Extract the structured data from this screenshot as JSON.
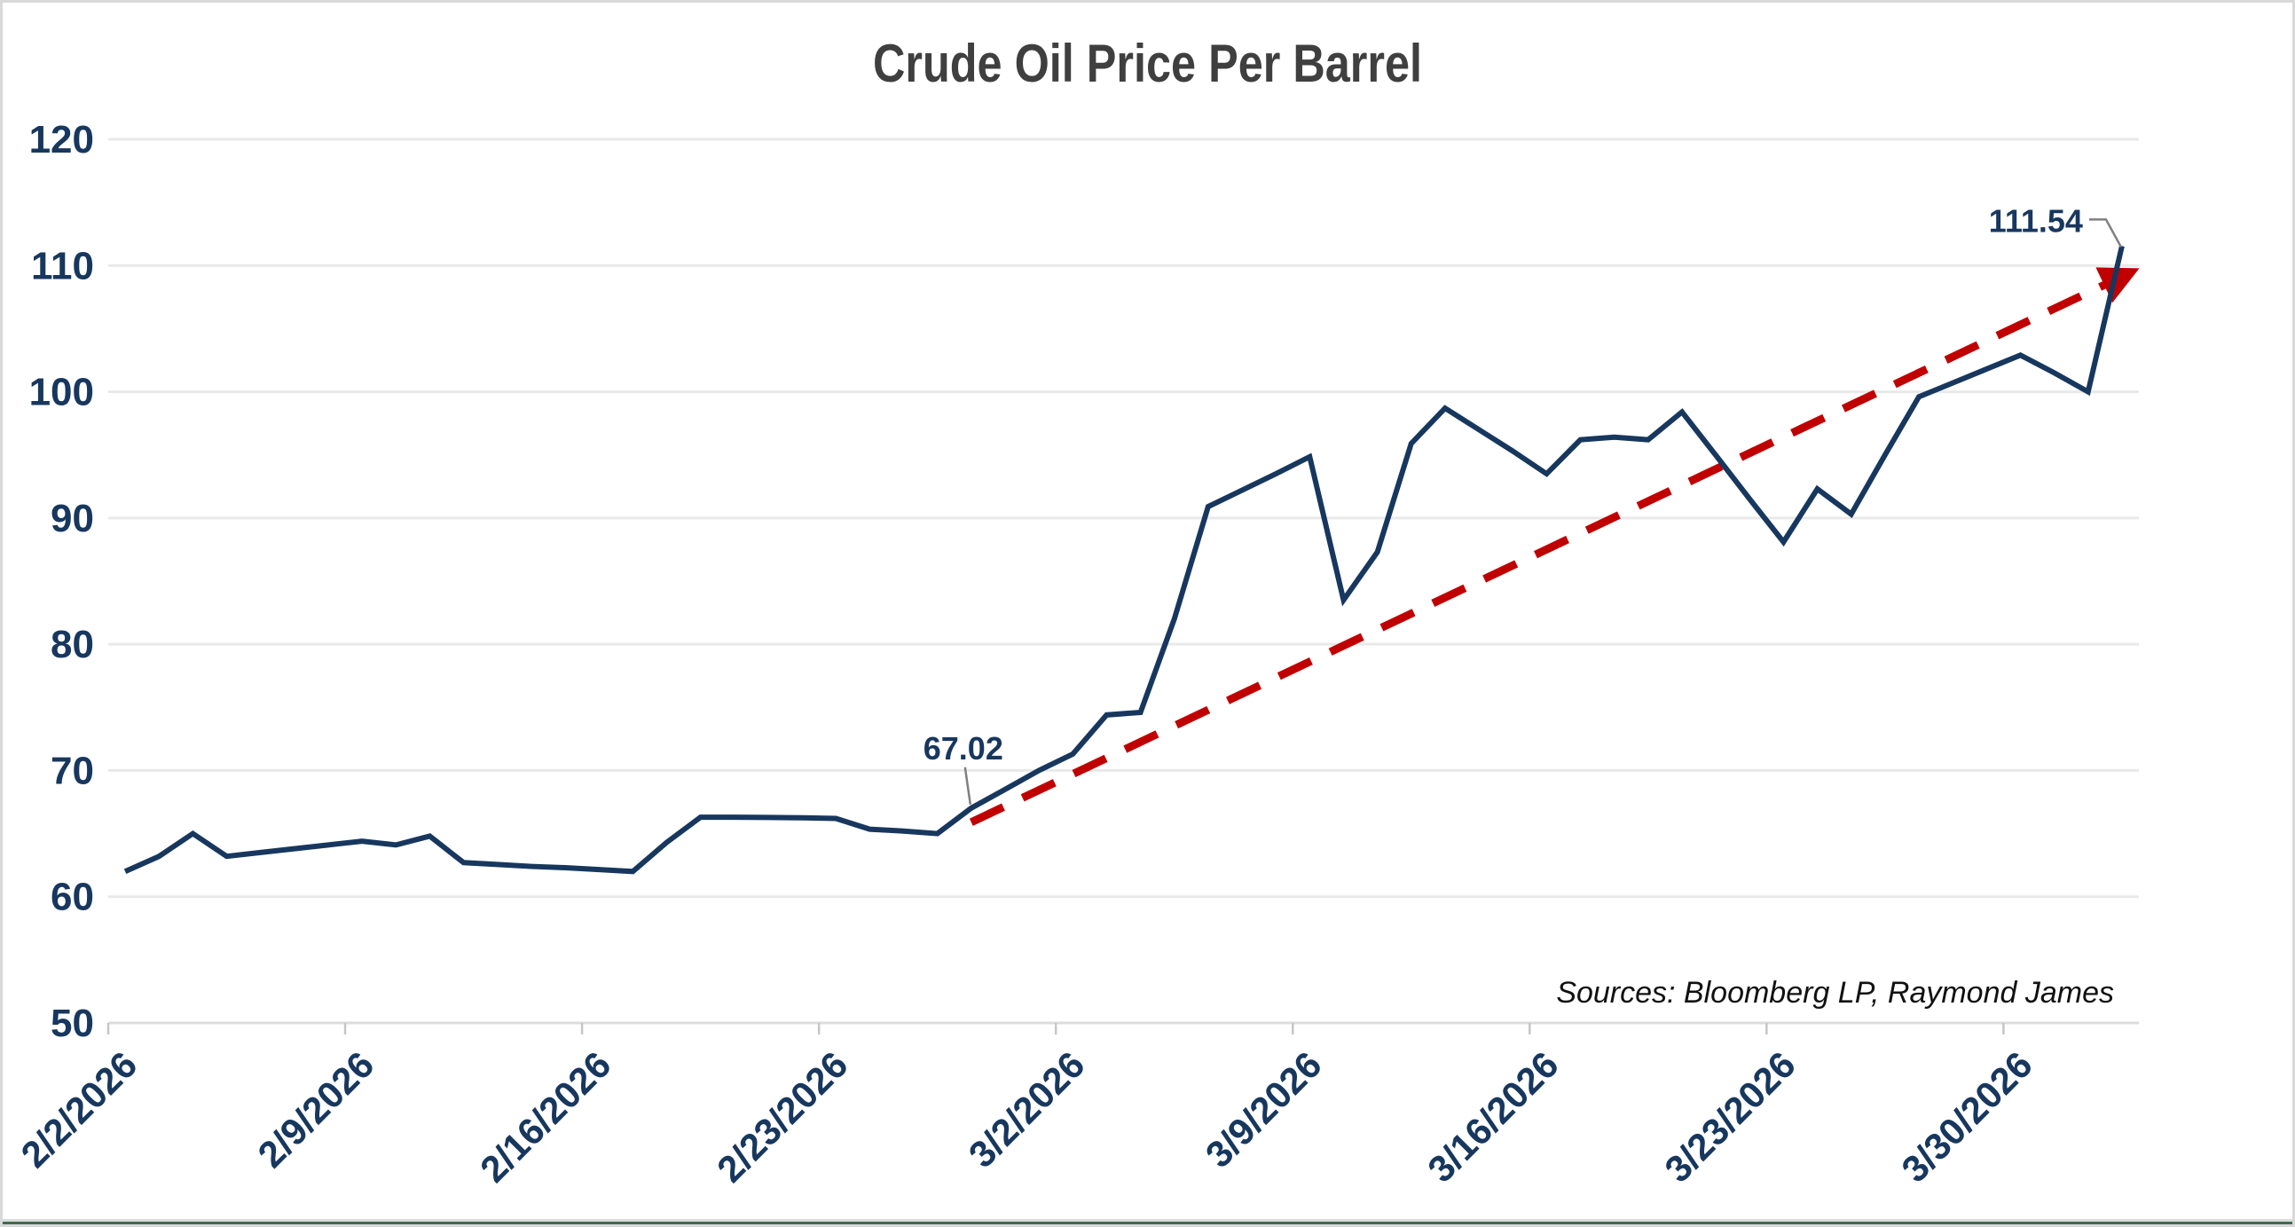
{
  "frame": {
    "background": "#FFFFFF",
    "border_color": "#D9D9D9",
    "bottom_green_line_color": "#3C6B4E"
  },
  "chart_data": {
    "type": "line",
    "title": "Crude Oil Price Per Barrel",
    "source_note": "Sources: Bloomberg LP, Raymond James",
    "xlabel": "",
    "ylabel": "",
    "ylim": [
      50,
      120
    ],
    "yticks": [
      120,
      110,
      100,
      90,
      80,
      70,
      60,
      50
    ],
    "grid": "horizontal",
    "legend": "none",
    "line_color": "#17375E",
    "gridline_color": "#E9E9E9",
    "tick_color": "#C6C6C6",
    "annotation_color": "#17375E",
    "leader_line_color": "#808080",
    "xtick_labels": [
      "2/2/2026",
      "2/9/2026",
      "2/16/2026",
      "2/23/2026",
      "3/2/2026",
      "3/9/2026",
      "3/16/2026",
      "3/23/2026",
      "3/30/2026"
    ],
    "xtick_day_indices": [
      0,
      7,
      14,
      21,
      28,
      35,
      42,
      49,
      56
    ],
    "dates": [
      "2/2/2026",
      "2/3/2026",
      "2/4/2026",
      "2/5/2026",
      "2/6/2026",
      "2/7/2026",
      "2/8/2026",
      "2/9/2026",
      "2/10/2026",
      "2/11/2026",
      "2/12/2026",
      "2/13/2026",
      "2/14/2026",
      "2/15/2026",
      "2/16/2026",
      "2/17/2026",
      "2/18/2026",
      "2/19/2026",
      "2/20/2026",
      "2/21/2026",
      "2/22/2026",
      "2/23/2026",
      "2/24/2026",
      "2/25/2026",
      "2/26/2026",
      "2/27/2026",
      "2/28/2026",
      "3/1/2026",
      "3/2/2026",
      "3/3/2026",
      "3/4/2026",
      "3/5/2026",
      "3/6/2026",
      "3/7/2026",
      "3/8/2026",
      "3/9/2026",
      "3/10/2026",
      "3/11/2026",
      "3/12/2026",
      "3/13/2026",
      "3/14/2026",
      "3/15/2026",
      "3/16/2026",
      "3/17/2026",
      "3/18/2026",
      "3/19/2026",
      "3/20/2026",
      "3/21/2026",
      "3/22/2026",
      "3/23/2026",
      "3/24/2026",
      "3/25/2026",
      "3/26/2026",
      "3/27/2026",
      "3/28/2026",
      "3/29/2026",
      "3/30/2026",
      "3/31/2026",
      "4/1/2026",
      "4/2/2026"
    ],
    "values": [
      62.0,
      63.2,
      65.0,
      63.2,
      63.5,
      63.8,
      64.1,
      64.4,
      64.1,
      64.8,
      62.7,
      62.55,
      62.4,
      62.3,
      62.15,
      62.0,
      64.3,
      66.3,
      66.3,
      66.28,
      66.25,
      66.2,
      65.35,
      65.2,
      65.0,
      67.02,
      68.5,
      70.0,
      71.3,
      74.4,
      74.6,
      82.0,
      90.9,
      92.2,
      93.5,
      94.85,
      83.5,
      87.3,
      95.9,
      98.7,
      97.0,
      95.3,
      93.5,
      96.2,
      96.4,
      96.2,
      98.4,
      94.97,
      91.5,
      88.1,
      92.3,
      90.3,
      95.0,
      99.6,
      100.7,
      101.8,
      102.9,
      101.5,
      100.0,
      111.54
    ],
    "annotations": [
      {
        "text": "67.02",
        "day_index": 25,
        "value": 67.02,
        "placement": "above-left"
      },
      {
        "text": "111.54",
        "day_index": 59,
        "value": 111.54,
        "placement": "left-elbow"
      }
    ],
    "trendline": {
      "style": "dashed",
      "color": "#C00000",
      "arrow": true,
      "from": {
        "day_index": 25,
        "value": 65.9
      },
      "to": {
        "day_index": 58.9,
        "value": 109.0
      }
    }
  }
}
